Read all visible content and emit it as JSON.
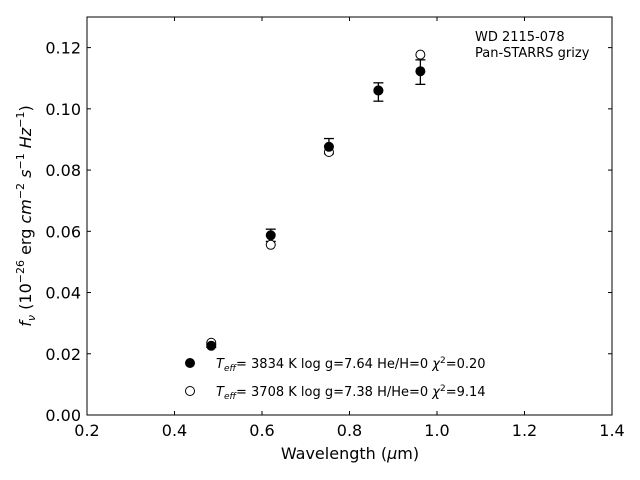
{
  "chart_data": {
    "type": "scatter",
    "title": "",
    "annotation_lines": [
      "WD 2115-078",
      "Pan-STARRS grizy"
    ],
    "xlabel": "Wavelength (μm)",
    "ylabel": "fν (10⁻²⁶ erg cm⁻² s⁻¹ Hz⁻¹)",
    "xlim": [
      0.2,
      1.4
    ],
    "ylim": [
      0.0,
      0.13
    ],
    "xticks": [
      "0.2",
      "0.4",
      "0.6",
      "0.8",
      "1.0",
      "1.2",
      "1.4"
    ],
    "yticks": [
      "0.00",
      "0.02",
      "0.04",
      "0.06",
      "0.08",
      "0.10",
      "0.12"
    ],
    "grid": false,
    "legend_position": "bottom-center",
    "observed": {
      "x": [
        0.484,
        0.62,
        0.753,
        0.866,
        0.962
      ],
      "y": [
        0.0226,
        0.0587,
        0.0878,
        0.1055,
        0.112
      ],
      "err": [
        0.0005,
        0.002,
        0.0025,
        0.003,
        0.004
      ]
    },
    "series": [
      {
        "legend": "Teff= 3834 K  log g=7.64  He/H=0  χ²=0.20",
        "marker": "filled",
        "x": [
          0.484,
          0.62,
          0.753,
          0.866,
          0.962
        ],
        "y": [
          0.0226,
          0.0587,
          0.0876,
          0.106,
          0.1123
        ]
      },
      {
        "legend": "Teff= 3708 K  log g=7.38  H/He=0  χ²=9.14",
        "marker": "open",
        "x": [
          0.484,
          0.62,
          0.753,
          0.866,
          0.962
        ],
        "y": [
          0.0236,
          0.0556,
          0.0859,
          0.106,
          0.1177
        ]
      }
    ]
  }
}
